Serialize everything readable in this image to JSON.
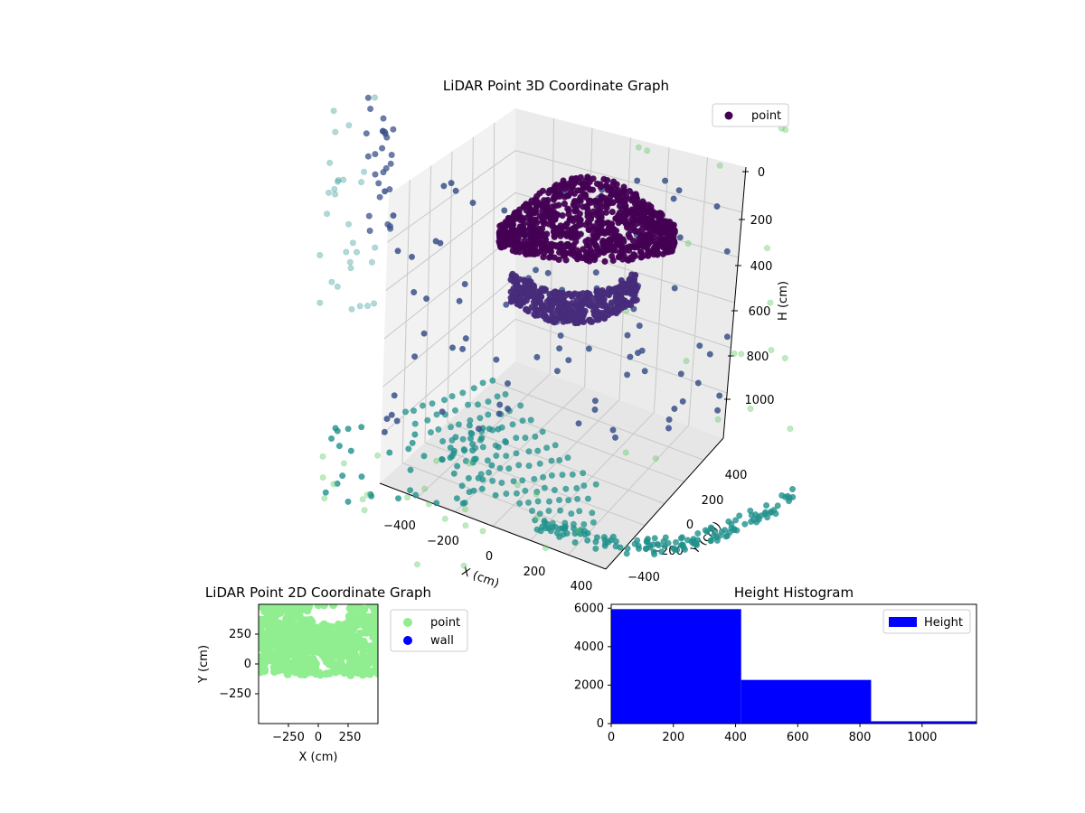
{
  "colors": {
    "viridis_top": "#440154",
    "viridis_mid": "#3b528b",
    "viridis_teal": "#21918c",
    "viridis_green": "#5ec962",
    "light_green": "#90ee90",
    "blue": "#0000ff",
    "pane": "#f2f2f2",
    "grid": "#cccccc"
  },
  "chart_data": [
    {
      "type": "scatter",
      "title": "LiDAR Point 3D Coordinate Graph",
      "xlabel": "X (cm)",
      "ylabel": "Y (cm)",
      "zlabel": "H (cm)",
      "x_ticks": [
        "−400",
        "−200",
        "0",
        "200",
        "400"
      ],
      "y_ticks": [
        "−400",
        "−200",
        "0",
        "200",
        "400"
      ],
      "z_ticks": [
        "0",
        "200",
        "400",
        "600",
        "800",
        "1000"
      ],
      "z_inverted": true,
      "legend": [
        "point"
      ],
      "legend_position": "top-right",
      "colormap": "viridis"
    },
    {
      "type": "scatter",
      "title": "LiDAR Point 2D Coordinate Graph",
      "xlabel": "X (cm)",
      "ylabel": "Y (cm)",
      "x_ticks": [
        "−250",
        "0",
        "250"
      ],
      "y_ticks": [
        "250",
        "0",
        "−250"
      ],
      "xlim": [
        -500,
        500
      ],
      "ylim": [
        -500,
        500
      ],
      "series": [
        {
          "name": "point",
          "color": "#90ee90"
        },
        {
          "name": "wall",
          "color": "#0000ff",
          "values": []
        }
      ],
      "legend_position": "outside-right"
    },
    {
      "type": "bar",
      "title": "Height Histogram",
      "xlabel": "",
      "ylabel": "",
      "x_ticks": [
        "0",
        "200",
        "400",
        "600",
        "800",
        "1000"
      ],
      "y_ticks": [
        "0",
        "2000",
        "4000",
        "6000"
      ],
      "xlim": [
        0,
        1175
      ],
      "ylim": [
        0,
        6200
      ],
      "bins": [
        {
          "from": 0,
          "to": 418,
          "count": 5950
        },
        {
          "from": 418,
          "to": 836,
          "count": 2270
        },
        {
          "from": 836,
          "to": 1175,
          "count": 120
        }
      ],
      "series": [
        {
          "name": "Height",
          "color": "#0000ff"
        }
      ],
      "legend_position": "top-right"
    }
  ]
}
